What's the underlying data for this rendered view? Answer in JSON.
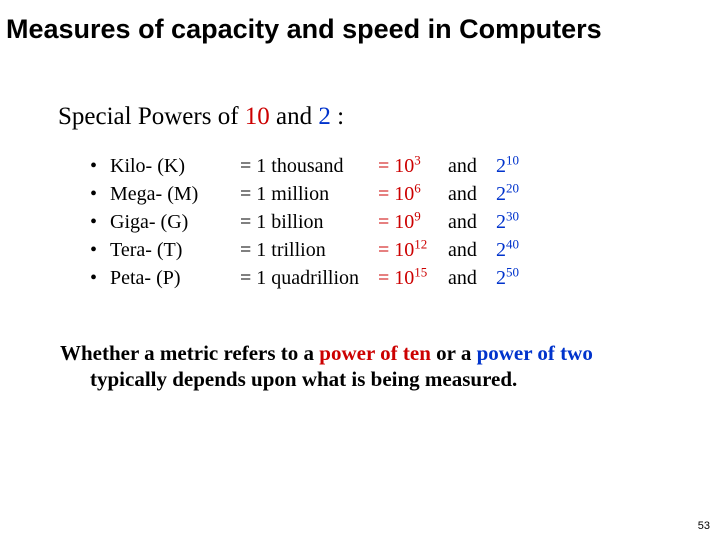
{
  "title": "Measures of capacity and speed in Computers",
  "subtitle": {
    "lead": "Special Powers of ",
    "ten": "10",
    "mid": " and ",
    "two": "2",
    "tail": " :"
  },
  "rows": [
    {
      "prefix": "Kilo- (K)",
      "word": "= 1 thousand",
      "tenExp": "3",
      "twoExp": "10"
    },
    {
      "prefix": "Mega- (M)",
      "word": "= 1 million",
      "tenExp": "6",
      "twoExp": "20"
    },
    {
      "prefix": "Giga- (G)",
      "word": "= 1 billion",
      "tenExp": "9",
      "twoExp": "30"
    },
    {
      "prefix": "Tera- (T)",
      "word": "= 1 trillion",
      "tenExp": "12",
      "twoExp": "40"
    },
    {
      "prefix": "Peta- (P)",
      "word": "= 1 quadrillion",
      "tenExp": "15",
      "twoExp": "50"
    }
  ],
  "footer": {
    "t1": "Whether a metric refers to a ",
    "powTen": "power of ten",
    "t2": " or a ",
    "powTwo": "power of two",
    "t3": " typically depends upon what is being measured."
  },
  "tenBase": "= 10",
  "twoBase": "2",
  "andWord": "and",
  "bullet": "•",
  "pageNumber": "53"
}
